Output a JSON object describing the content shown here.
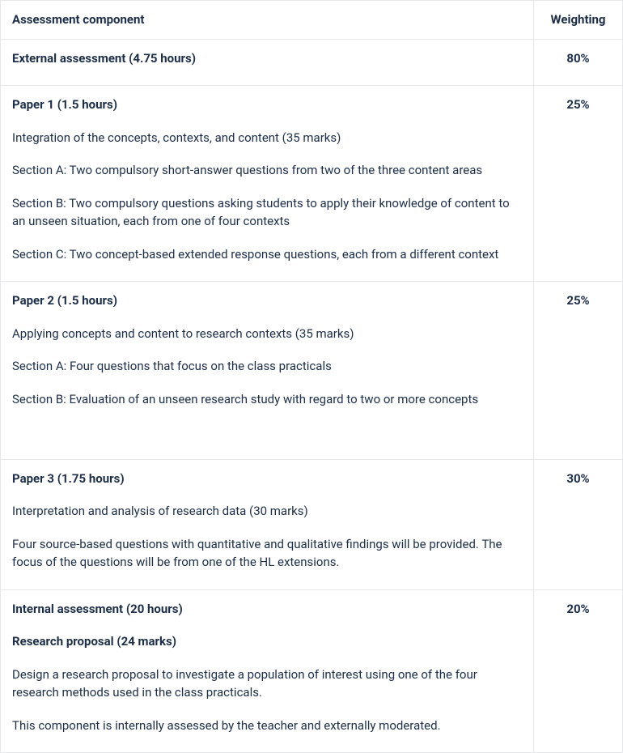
{
  "headers": {
    "component": "Assessment component",
    "weighting": "Weighting"
  },
  "rows": [
    {
      "weighting": "80%",
      "lines": [
        {
          "text": "External assessment (4.75 hours)",
          "bold": true
        }
      ]
    },
    {
      "weighting": "25%",
      "lines": [
        {
          "text": "Paper 1 (1.5 hours)",
          "bold": true
        },
        {
          "text": "Integration of the concepts, contexts, and content (35 marks)",
          "bold": false
        },
        {
          "text": "Section A: Two compulsory short-answer questions from two of the three content areas",
          "bold": false
        },
        {
          "text": "Section B: Two compulsory questions asking students to apply their knowledge of content to an unseen situation, each from one of four contexts",
          "bold": false
        },
        {
          "text": "Section C: Two concept-based extended response questions, each from a different context",
          "bold": false
        }
      ]
    },
    {
      "weighting": "25%",
      "lines": [
        {
          "text": "Paper 2 (1.5 hours)",
          "bold": true
        },
        {
          "text": "Applying concepts and content to research contexts (35 marks)",
          "bold": false
        },
        {
          "text": "Section A: Four questions that focus on the class practicals",
          "bold": false
        },
        {
          "text": "Section B: Evaluation of an unseen research study with regard to two or more concepts",
          "bold": false
        },
        {
          "text": " ",
          "bold": false
        }
      ]
    },
    {
      "weighting": "30%",
      "lines": [
        {
          "text": "Paper 3 (1.75 hours)",
          "bold": true
        },
        {
          "text": "Interpretation and analysis of research data (30 marks)",
          "bold": false
        },
        {
          "text": "Four source-based questions with quantitative and qualitative findings will be provided. The focus of the questions will be from one of the HL extensions.",
          "bold": false
        }
      ]
    },
    {
      "weighting": "20%",
      "lines": [
        {
          "text": "Internal assessment (20 hours)",
          "bold": true
        },
        {
          "text": "Research proposal (24 marks)",
          "bold": true
        },
        {
          "text": "Design a research proposal to investigate a population of interest using one of the four research methods used in the class practicals.",
          "bold": false
        },
        {
          "text": "This component is internally assessed by the teacher and externally moderated.",
          "bold": false
        }
      ]
    }
  ]
}
